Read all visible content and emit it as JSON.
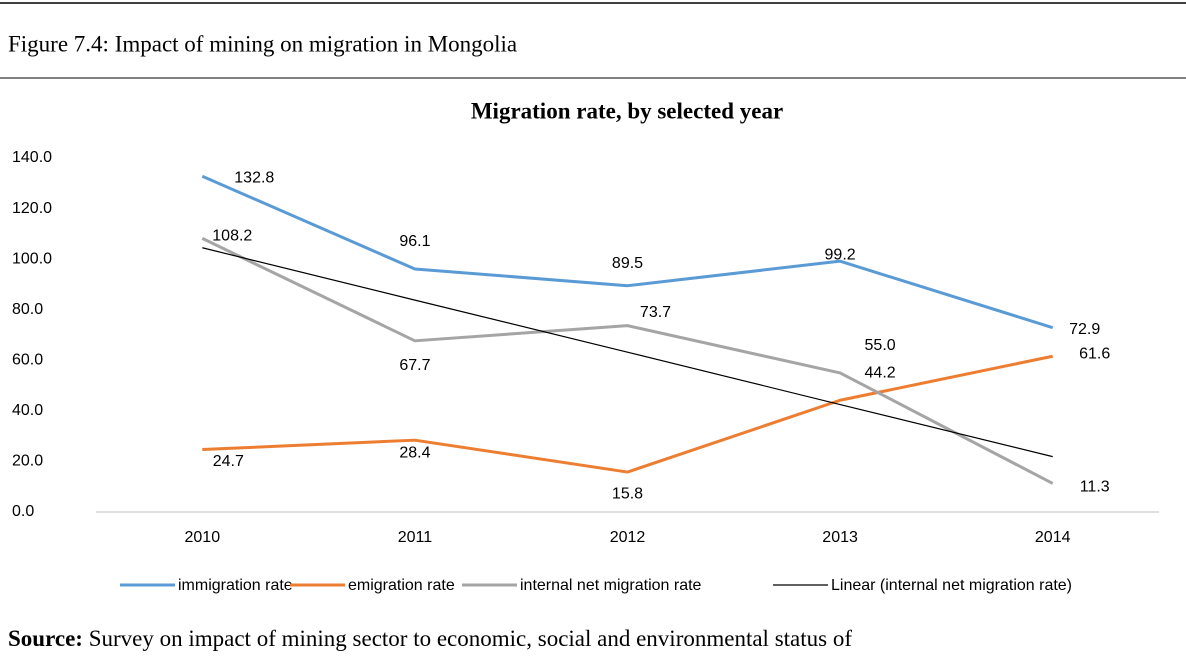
{
  "figure_caption": "Figure 7.4: Impact of  mining on migration in Mongolia",
  "source_label": "Source:",
  "source_text": "Survey on impact of mining sector to economic, social and environmental status of",
  "chart_data": {
    "type": "line",
    "title": "Migration rate, by selected year",
    "categories": [
      "2010",
      "2011",
      "2012",
      "2013",
      "2014"
    ],
    "series": [
      {
        "name": "immigration rate",
        "color": "#5b9bd5",
        "values": [
          132.8,
          96.1,
          89.5,
          99.2,
          72.9
        ]
      },
      {
        "name": "emigration rate",
        "color": "#ed7d31",
        "values": [
          24.7,
          28.4,
          15.8,
          44.2,
          61.6
        ]
      },
      {
        "name": "internal net migration rate",
        "color": "#a5a5a5",
        "values": [
          108.2,
          67.7,
          73.7,
          55,
          11.3
        ],
        "value_labels": [
          "108.2",
          "67.7",
          "73.7",
          "55.0",
          "11.3"
        ]
      },
      {
        "name": "Linear (internal net migration rate)",
        "color": "#000000",
        "values": [
          104.5,
          83.8,
          63.2,
          42.5,
          21.9
        ]
      }
    ],
    "ylim": [
      0,
      140
    ],
    "yticks": [
      {
        "value": 0,
        "label": "0.0"
      },
      {
        "value": 20,
        "label": "20.0"
      },
      {
        "value": 40,
        "label": "40.0"
      },
      {
        "value": 60,
        "label": "60.0"
      },
      {
        "value": 80,
        "label": "80.0"
      },
      {
        "value": 100,
        "label": "100.0"
      },
      {
        "value": 120,
        "label": "120.0"
      },
      {
        "value": 140,
        "label": "140.0"
      }
    ],
    "grid": false,
    "legend": "bottom"
  }
}
